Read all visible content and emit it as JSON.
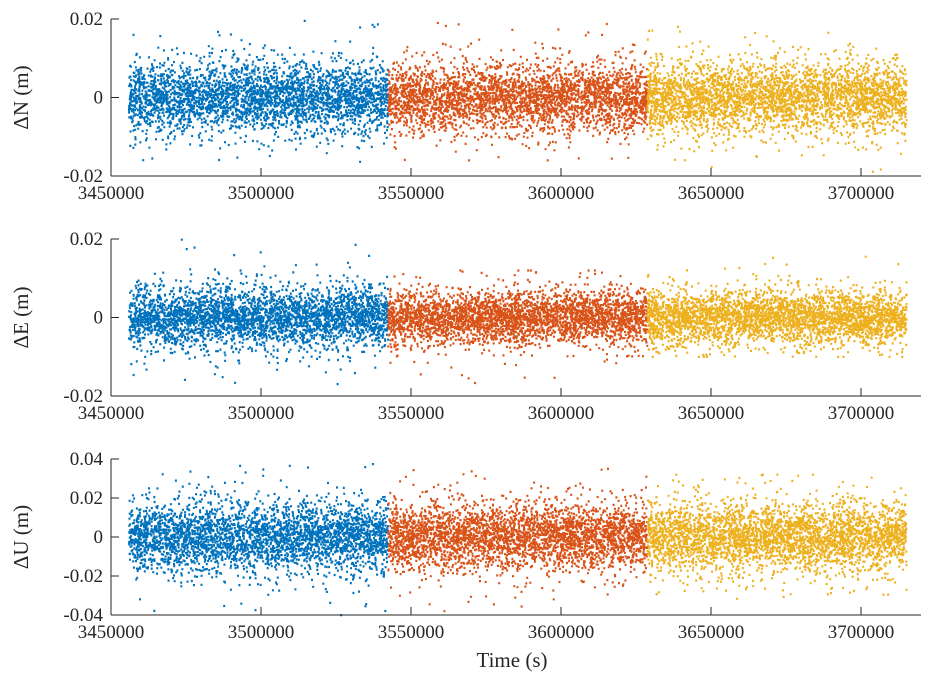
{
  "colors": {
    "series_1": "#0072BD",
    "series_2": "#D95319",
    "series_3": "#EDB120",
    "axis": "#262626",
    "background": "#ffffff"
  },
  "chart_data": [
    {
      "type": "scatter",
      "title": "",
      "xlabel": "",
      "ylabel": "ΔN (m)",
      "xlim": [
        3450000,
        3720000
      ],
      "ylim": [
        -0.02,
        0.02
      ],
      "xticks": [
        3450000,
        3500000,
        3550000,
        3600000,
        3650000,
        3700000
      ],
      "xtick_labels": [
        "3450000",
        "3500000",
        "3550000",
        "3600000",
        "3650000",
        "3700000"
      ],
      "yticks": [
        -0.02,
        0,
        0.02
      ],
      "ytick_labels": [
        "-0.02",
        "0",
        "0.02"
      ],
      "grid": false,
      "box": false,
      "series": [
        {
          "color": "#0072BD",
          "x_range": [
            3456000,
            3542400
          ],
          "mean": 0.0,
          "std": 0.0045,
          "min": -0.018,
          "max": 0.02
        },
        {
          "color": "#D95319",
          "x_range": [
            3542400,
            3628800
          ],
          "mean": 0.0,
          "std": 0.0045,
          "min": -0.016,
          "max": 0.019
        },
        {
          "color": "#EDB120",
          "x_range": [
            3628800,
            3715200
          ],
          "mean": 0.0,
          "std": 0.0045,
          "min": -0.019,
          "max": 0.018
        }
      ]
    },
    {
      "type": "scatter",
      "title": "",
      "xlabel": "",
      "ylabel": "ΔE (m)",
      "xlim": [
        3450000,
        3720000
      ],
      "ylim": [
        -0.02,
        0.02
      ],
      "xticks": [
        3450000,
        3500000,
        3550000,
        3600000,
        3650000,
        3700000
      ],
      "xtick_labels": [
        "3450000",
        "3500000",
        "3550000",
        "3600000",
        "3650000",
        "3700000"
      ],
      "yticks": [
        -0.02,
        0,
        0.02
      ],
      "ytick_labels": [
        "-0.02",
        "0",
        "0.02"
      ],
      "grid": false,
      "box": false,
      "series": [
        {
          "color": "#0072BD",
          "x_range": [
            3456000,
            3542400
          ],
          "mean": 0.0,
          "std": 0.004,
          "min": -0.018,
          "max": 0.02
        },
        {
          "color": "#D95319",
          "x_range": [
            3542400,
            3628800
          ],
          "mean": 0.0,
          "std": 0.0035,
          "min": -0.017,
          "max": 0.012
        },
        {
          "color": "#EDB120",
          "x_range": [
            3628800,
            3715200
          ],
          "mean": 0.0,
          "std": 0.0035,
          "min": -0.01,
          "max": 0.016
        }
      ]
    },
    {
      "type": "scatter",
      "title": "",
      "xlabel": "Time (s)",
      "ylabel": "ΔU (m)",
      "xlim": [
        3450000,
        3720000
      ],
      "ylim": [
        -0.04,
        0.04
      ],
      "xticks": [
        3450000,
        3500000,
        3550000,
        3600000,
        3650000,
        3700000
      ],
      "xtick_labels": [
        "3450000",
        "3500000",
        "3550000",
        "3600000",
        "3650000",
        "3700000"
      ],
      "yticks": [
        -0.04,
        -0.02,
        0,
        0.02,
        0.04
      ],
      "ytick_labels": [
        "-0.04",
        "-0.02",
        "0",
        "0.02",
        "0.04"
      ],
      "grid": false,
      "box": false,
      "series": [
        {
          "color": "#0072BD",
          "x_range": [
            3456000,
            3542400
          ],
          "mean": 0.0,
          "std": 0.009,
          "min": -0.04,
          "max": 0.039
        },
        {
          "color": "#D95319",
          "x_range": [
            3542400,
            3628800
          ],
          "mean": 0.0,
          "std": 0.009,
          "min": -0.038,
          "max": 0.035
        },
        {
          "color": "#EDB120",
          "x_range": [
            3628800,
            3715200
          ],
          "mean": 0.0,
          "std": 0.009,
          "min": -0.032,
          "max": 0.032
        }
      ]
    }
  ]
}
